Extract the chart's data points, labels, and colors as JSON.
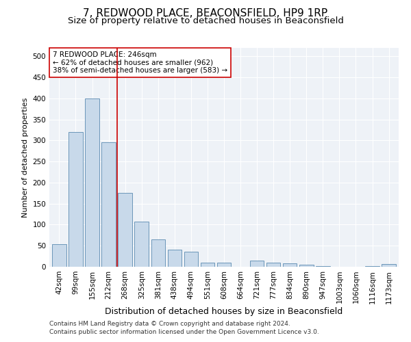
{
  "title1": "7, REDWOOD PLACE, BEACONSFIELD, HP9 1RP",
  "title2": "Size of property relative to detached houses in Beaconsfield",
  "xlabel": "Distribution of detached houses by size in Beaconsfield",
  "ylabel": "Number of detached properties",
  "categories": [
    "42sqm",
    "99sqm",
    "155sqm",
    "212sqm",
    "268sqm",
    "325sqm",
    "381sqm",
    "438sqm",
    "494sqm",
    "551sqm",
    "608sqm",
    "664sqm",
    "721sqm",
    "777sqm",
    "834sqm",
    "890sqm",
    "947sqm",
    "1003sqm",
    "1060sqm",
    "1116sqm",
    "1173sqm"
  ],
  "values": [
    53,
    320,
    400,
    295,
    175,
    108,
    65,
    40,
    35,
    10,
    10,
    0,
    15,
    10,
    8,
    5,
    2,
    0,
    0,
    2,
    6
  ],
  "bar_color": "#c8d9ea",
  "bar_edge_color": "#5a8ab0",
  "vline_x": 3.5,
  "vline_color": "#cc0000",
  "annotation_text": "7 REDWOOD PLACE: 246sqm\n← 62% of detached houses are smaller (962)\n38% of semi-detached houses are larger (583) →",
  "annotation_box_color": "#ffffff",
  "annotation_box_edge": "#cc0000",
  "ylim": [
    0,
    520
  ],
  "yticks": [
    0,
    50,
    100,
    150,
    200,
    250,
    300,
    350,
    400,
    450,
    500
  ],
  "footer1": "Contains HM Land Registry data © Crown copyright and database right 2024.",
  "footer2": "Contains public sector information licensed under the Open Government Licence v3.0.",
  "plot_bg_color": "#eef2f7",
  "title1_fontsize": 11,
  "title2_fontsize": 9.5,
  "xlabel_fontsize": 9,
  "ylabel_fontsize": 8,
  "tick_fontsize": 7.5,
  "footer_fontsize": 6.5,
  "annotation_fontsize": 7.5
}
